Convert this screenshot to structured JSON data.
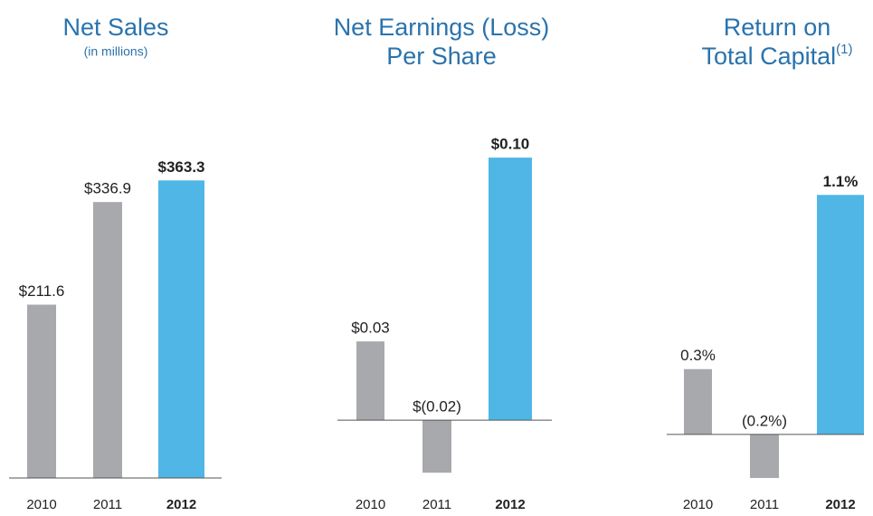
{
  "chart_data": [
    {
      "type": "bar",
      "title": [
        "Net Sales"
      ],
      "subtitle": "(in millions)",
      "categories": [
        "2010",
        "2011",
        "2012"
      ],
      "values": [
        211.6,
        336.9,
        363.3
      ],
      "value_labels": [
        "$211.6",
        "$336.9",
        "$363.3"
      ],
      "colors": [
        "#a7a9ac",
        "#a7a9ac",
        "#4fb6e6"
      ],
      "highlight_color": "#4fb6e6",
      "ylim": [
        0,
        420
      ]
    },
    {
      "type": "bar",
      "title": [
        "Net Earnings (Loss)",
        "Per Share"
      ],
      "categories": [
        "2010",
        "2011",
        "2012"
      ],
      "values": [
        0.03,
        -0.02,
        0.1
      ],
      "value_labels": [
        "$0.03",
        "$(0.02)",
        "$0.10"
      ],
      "colors": [
        "#a7a9ac",
        "#a7a9ac",
        "#4fb6e6"
      ],
      "highlight_color": "#4fb6e6",
      "ylim": [
        -0.022,
        0.109
      ]
    },
    {
      "type": "bar",
      "title": [
        "Return on",
        "Total Capital"
      ],
      "title_note": "(1)",
      "categories": [
        "2010",
        "2011",
        "2012"
      ],
      "values": [
        0.3,
        -0.2,
        1.1
      ],
      "value_labels": [
        "0.3%",
        "(0.2%)",
        "1.1%"
      ],
      "colors": [
        "#a7a9ac",
        "#a7a9ac",
        "#4fb6e6"
      ],
      "highlight_color": "#4fb6e6",
      "ylim": [
        -0.2,
        1.38
      ]
    }
  ]
}
